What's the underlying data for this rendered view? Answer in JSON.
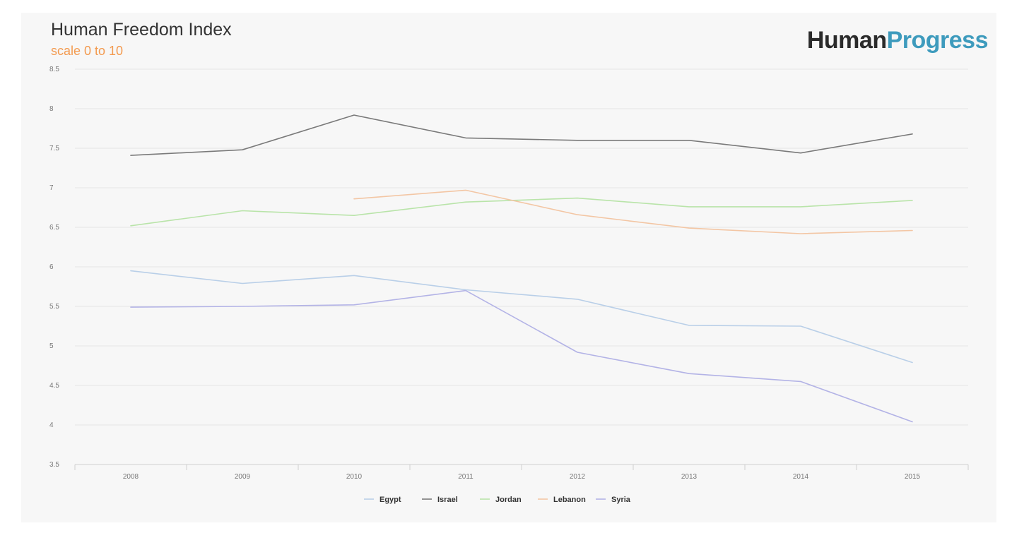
{
  "header": {
    "title": "Human Freedom Index",
    "subtitle": "scale 0 to 10",
    "brand_part1": "Human",
    "brand_part2": "Progress"
  },
  "colors": {
    "subtitle": "#f39a4f",
    "brand_dark": "#2b2b2b",
    "brand_accent": "#3e9bbd",
    "gridline": "#e4e4e4",
    "axis": "#cfcfcf"
  },
  "chart_data": {
    "type": "line",
    "title": "Human Freedom Index",
    "subtitle": "scale 0 to 10",
    "xlabel": "",
    "ylabel": "",
    "x": [
      "2008",
      "2009",
      "2010",
      "2011",
      "2012",
      "2013",
      "2014",
      "2015"
    ],
    "ylim": [
      3.5,
      8.5
    ],
    "yticks": [
      "3.5",
      "4",
      "4.5",
      "5",
      "5.5",
      "6",
      "6.5",
      "7",
      "7.5",
      "8",
      "8.5"
    ],
    "grid": true,
    "legend_position": "bottom-center",
    "series": [
      {
        "name": "Egypt",
        "color": "#b9cfe8",
        "values": [
          5.95,
          5.79,
          5.89,
          5.71,
          5.59,
          5.26,
          5.25,
          4.79
        ]
      },
      {
        "name": "Israel",
        "color": "#7a7a7a",
        "values": [
          7.41,
          7.48,
          7.92,
          7.63,
          7.6,
          7.6,
          7.44,
          7.68
        ]
      },
      {
        "name": "Jordan",
        "color": "#b9e4a9",
        "values": [
          6.52,
          6.71,
          6.65,
          6.82,
          6.87,
          6.76,
          6.76,
          6.84
        ]
      },
      {
        "name": "Lebanon",
        "color": "#f3c6a4",
        "values": [
          null,
          null,
          6.86,
          6.97,
          6.66,
          6.49,
          6.42,
          6.46
        ]
      },
      {
        "name": "Syria",
        "color": "#b3b3e6",
        "values": [
          5.49,
          5.5,
          5.52,
          5.7,
          4.92,
          4.65,
          4.55,
          4.04
        ]
      }
    ]
  }
}
